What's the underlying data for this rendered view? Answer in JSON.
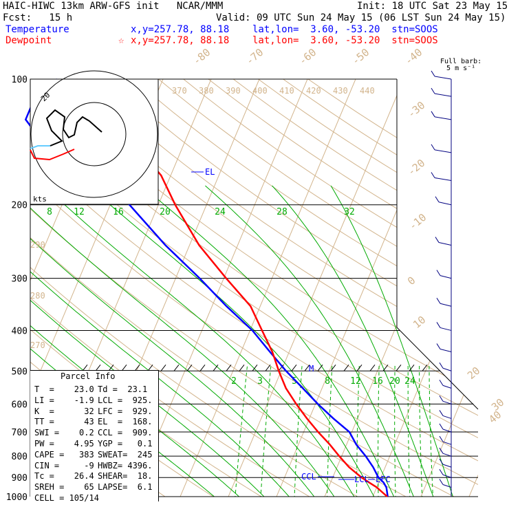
{
  "header": {
    "line1_left": "HAIC-HIWC 13km ARW-GFS init   NCAR/MMM",
    "line1_right": "Init: 18 UTC Sat 23 May 15",
    "line2_left": "Fcst:   15 h",
    "line2_right": "Valid: 09 UTC Sun 24 May 15 (06 LST Sun 24 May 15)",
    "temp_label": "Temperature",
    "temp_info": "x,y=257.78, 88.18    lat,lon=  3.60, -53.20  stn=SOOS",
    "dew_label": "Dewpoint",
    "dew_info": "x,y=257.78, 88.18    lat,lon=  3.60, -53.20  stn=SOOS",
    "dew_marker": "☆"
  },
  "colors": {
    "temperature": "#ff0000",
    "dewpoint": "#0000ff",
    "temp_header": "#0000ff",
    "dew_header": "#ff0000",
    "dry_adiabat": "#d2b48c",
    "mixing_ratio": "#00aa00",
    "moist_adiabat": "#00aa00",
    "wind_barb": "#000080"
  },
  "wind_barb_legend": {
    "line1": "Full barb:",
    "line2": "5 m s⁻¹"
  },
  "hodograph": {
    "label": "kts",
    "ring_label": "20"
  },
  "parcel_info": {
    "title": "Parcel Info",
    "rows": [
      {
        "l": "T  =    23.0",
        "r": "Td =  23.1"
      },
      {
        "l": "LI =    -1.9",
        "r": "LCL =  925."
      },
      {
        "l": "K  =      32",
        "r": "LFC =  929."
      },
      {
        "l": "TT =      43",
        "r": "EL  =  168."
      },
      {
        "l": "SWI =    0.2",
        "r": "CCL =  909."
      },
      {
        "l": "PW =    4.95",
        "r": "YGP =   0.1"
      },
      {
        "l": "CAPE =   383",
        "r": "SWEAT=  245"
      },
      {
        "l": "CIN =     -9",
        "r": "HWBZ= 4396."
      },
      {
        "l": "Tc =    26.4",
        "r": "SHEAR=  18."
      },
      {
        "l": "SREH =    65",
        "r": "LAPSE=  6.1"
      },
      {
        "l": "CELL = 105/14",
        "r": ""
      }
    ]
  },
  "level_labels": {
    "el": "EL",
    "ccl": "CCL",
    "lcl": "LCL",
    "lfc": "LFC",
    "m": "M"
  },
  "chart_data": {
    "type": "line",
    "title": "",
    "ylabel": "",
    "xlabel": "",
    "y_scale": "log-pressure",
    "pressure_levels": [
      100,
      200,
      300,
      400,
      500,
      600,
      700,
      800,
      900,
      1000
    ],
    "isotherm_labels": [
      -80,
      -70,
      -60,
      -50,
      -40,
      -30,
      -20,
      -10,
      0,
      10,
      20,
      30,
      40
    ],
    "theta_labels": [
      370,
      380,
      390,
      400,
      410,
      420,
      430,
      440
    ],
    "low_theta_labels": [
      290,
      280,
      270
    ],
    "mixing_ratio_top_labels": [
      8,
      12,
      16,
      20,
      24,
      28,
      32
    ],
    "mixing_ratio_low_labels": [
      2,
      3,
      5,
      8,
      12,
      16,
      20,
      24
    ],
    "series": [
      {
        "name": "Temperature",
        "pressure": [
          1000,
          950,
          925,
          900,
          850,
          800,
          750,
          700,
          650,
          600,
          550,
          500,
          450,
          400,
          350,
          300,
          250,
          200,
          170,
          150,
          125,
          115,
          100
        ],
        "values": [
          23,
          20,
          18,
          16,
          12.5,
          9.5,
          6.5,
          3,
          -0.5,
          -4,
          -7.5,
          -10.5,
          -13.5,
          -17.5,
          -22,
          -29.5,
          -38,
          -46.5,
          -52,
          -58,
          -65,
          -72,
          -78
        ]
      },
      {
        "name": "Dewpoint",
        "pressure": [
          1000,
          950,
          925,
          900,
          850,
          800,
          750,
          700,
          650,
          600,
          550,
          500,
          450,
          400,
          350,
          300,
          250,
          200,
          170,
          150,
          125,
          115,
          100
        ],
        "values": [
          23.1,
          22,
          21,
          19.5,
          17.5,
          15,
          12,
          9.5,
          5,
          0.5,
          -4,
          -9,
          -14,
          -19.5,
          -27,
          -35,
          -45,
          -56,
          -66,
          -77,
          -85,
          -85,
          -82
        ]
      }
    ],
    "wind_profile_pressure": [
      950,
      900,
      850,
      800,
      750,
      700,
      650,
      600,
      550,
      500,
      450,
      400,
      350,
      300,
      250,
      200,
      175,
      150,
      125,
      110,
      100
    ]
  }
}
